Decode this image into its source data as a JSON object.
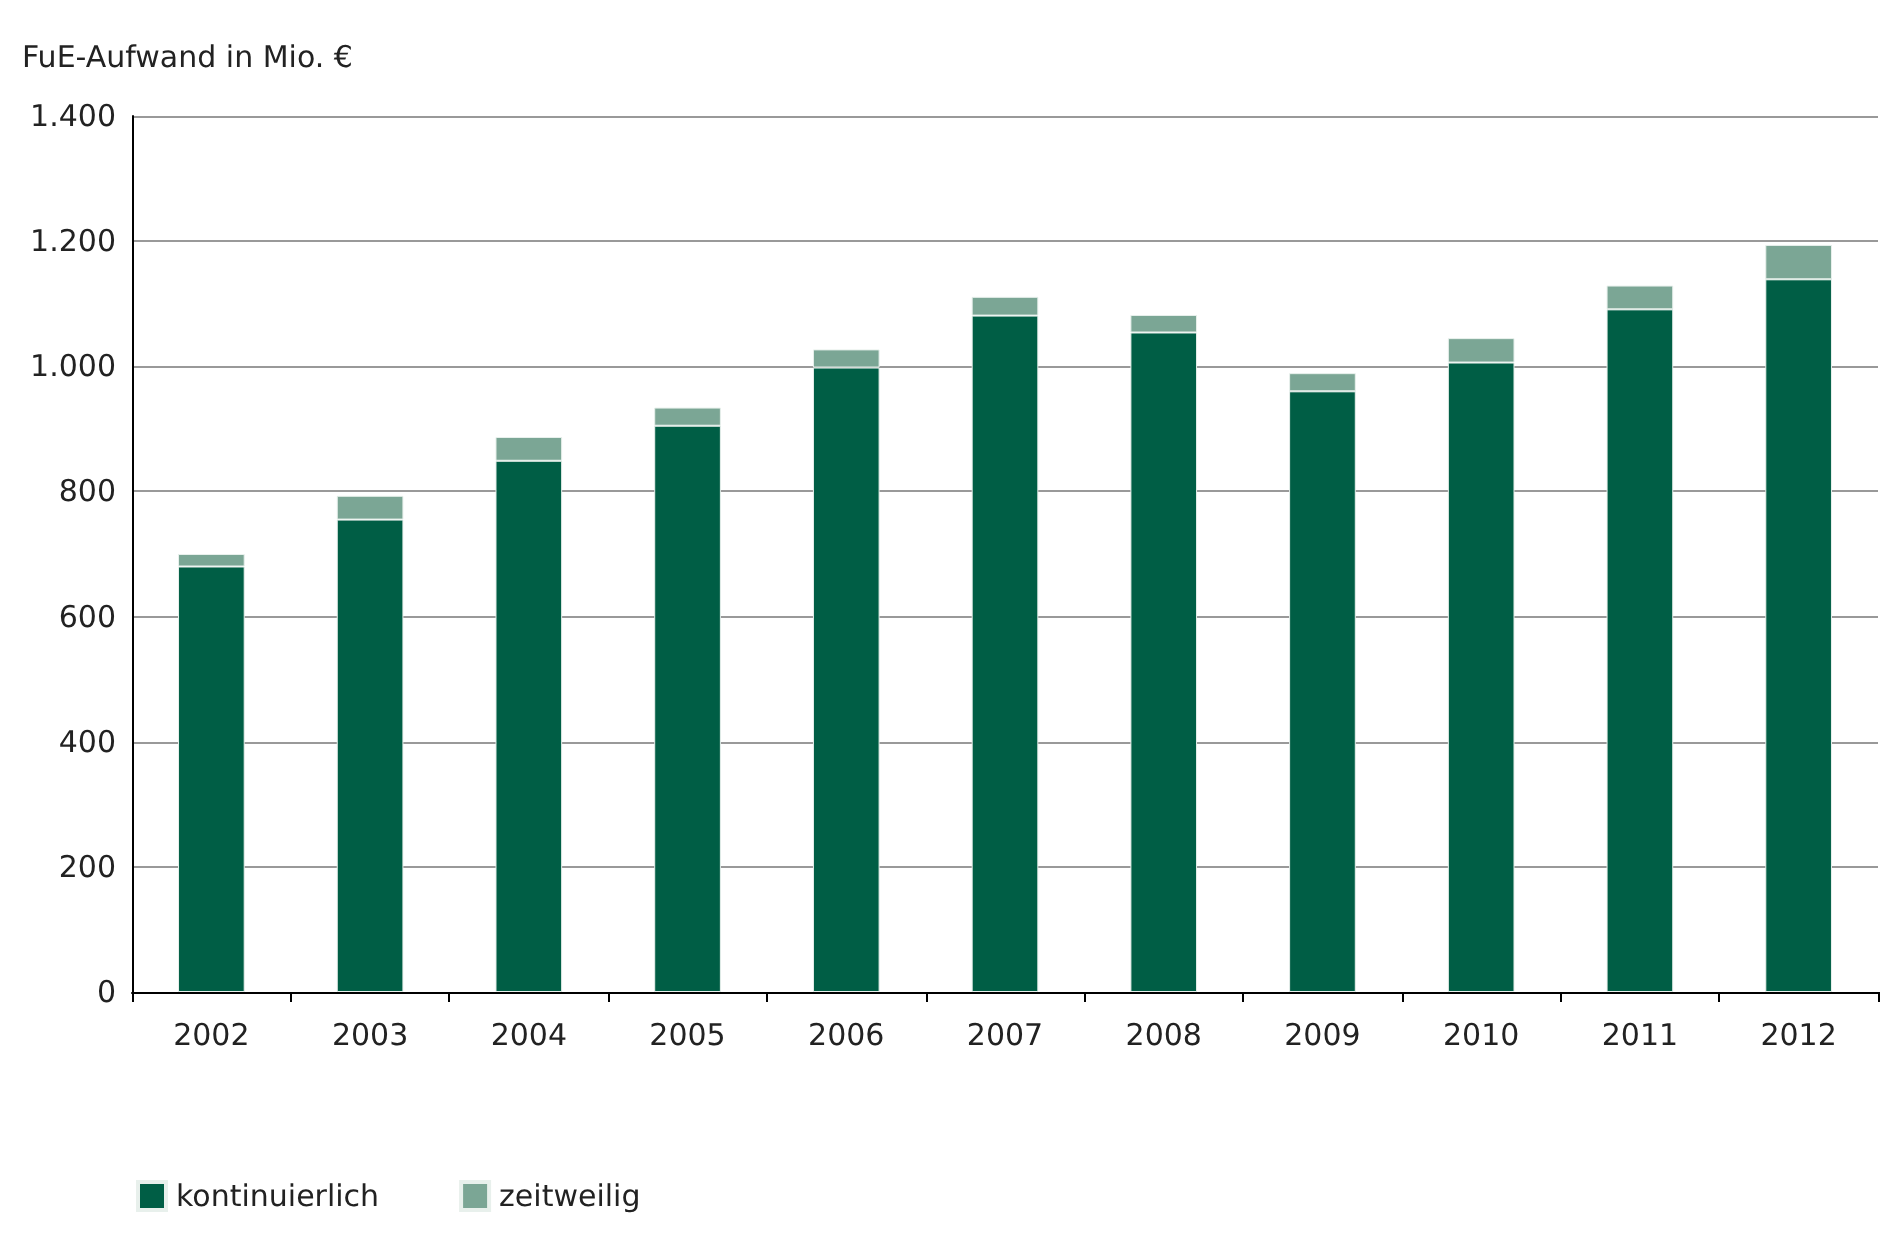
{
  "chart_data": {
    "type": "bar",
    "ylabel": "FuE-Aufwand in Mio. €",
    "categories": [
      "2002",
      "2003",
      "2004",
      "2005",
      "2006",
      "2007",
      "2008",
      "2009",
      "2010",
      "2011",
      "2012"
    ],
    "stacked": true,
    "series": [
      {
        "name": "kontinuierlich",
        "color": "#005e45",
        "values": [
          680,
          755,
          849,
          905,
          998,
          1081,
          1054,
          960,
          1006,
          1091,
          1139
        ]
      },
      {
        "name": "zeitweilig",
        "color": "#7ba695",
        "values": [
          20,
          38,
          38,
          29,
          29,
          30,
          28,
          29,
          39,
          38,
          55
        ]
      }
    ],
    "ylim": [
      0,
      1400
    ],
    "yticks": [
      0,
      200,
      400,
      600,
      800,
      {
        "value": 1000,
        "label": "1.000"
      },
      {
        "value": 1200,
        "label": "1.200"
      },
      {
        "value": 1400,
        "label": "1.400"
      }
    ],
    "grid": "y",
    "legend": "bottom left"
  }
}
